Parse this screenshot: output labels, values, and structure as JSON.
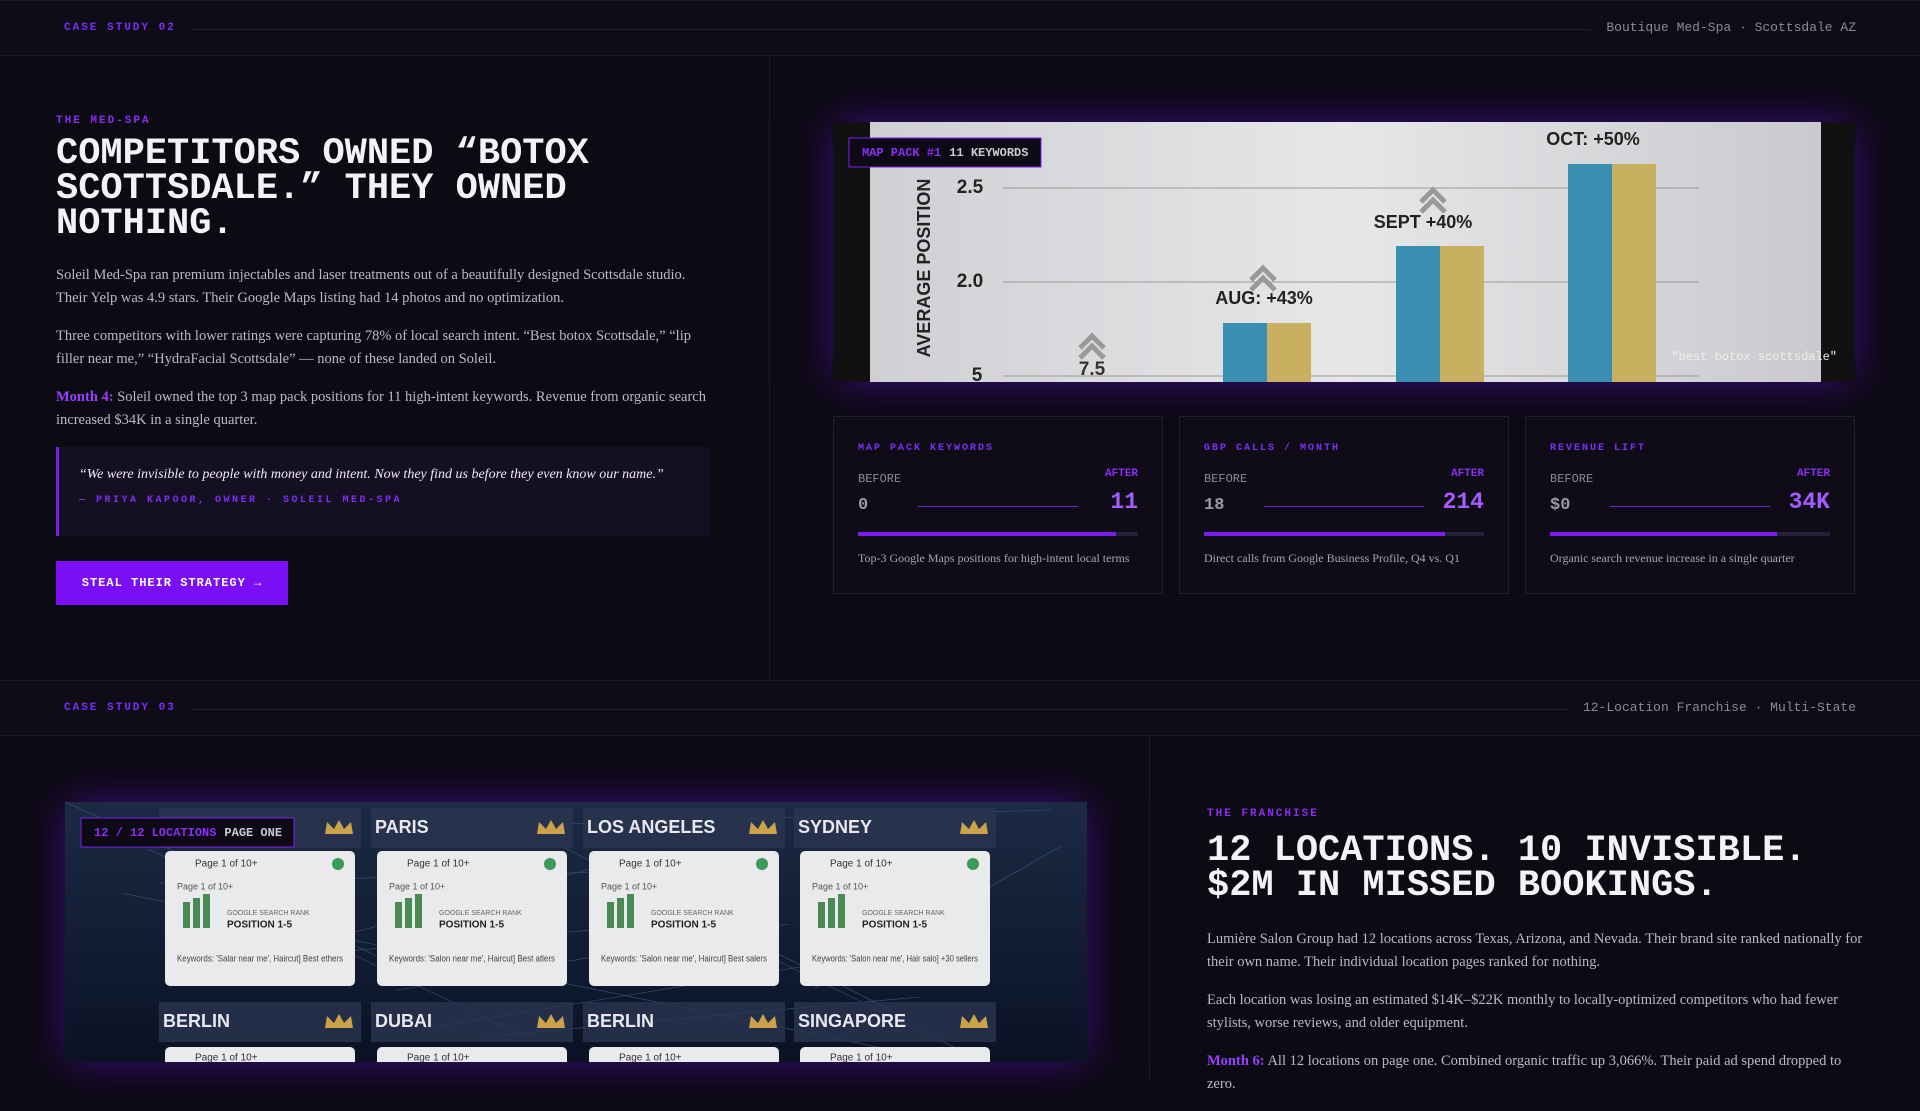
{
  "case_studies": [
    {
      "label": "CASE STUDY 02",
      "subtitle": "Boutique Med-Spa · Scottsdale AZ",
      "eyebrow": "THE MED-SPA",
      "heading": [
        "COMPETITORS OWNED “BOTOX",
        "SCOTTSDALE.” THEY OWNED",
        "NOTHING."
      ],
      "paragraphs": [
        {
          "lead": null,
          "text": "Soleil Med-Spa ran premium injectables and laser treatments out of a beautifully designed Scottsdale studio. Their Yelp was 4.9 stars. Their Google Maps listing had 14 photos and no optimization."
        },
        {
          "lead": null,
          "text": "Three competitors with lower ratings were capturing 78% of local search intent. “Best botox Scottsdale,” “lip filler near me,” “HydraFacial Scottsdale” — none of these landed on Soleil."
        },
        {
          "lead": "Month 4:",
          "text": "Soleil owned the top 3 map pack positions for 11 high-intent keywords. Revenue from organic search increased $34K in a single quarter."
        }
      ],
      "quote": "“We were invisible to people with money and intent. Now they find us before they even know our name.”",
      "attribution": "— PRIYA KAPOOR, OWNER · SOLEIL MED-SPA",
      "button": "STEAL THEIR STRATEGY →",
      "image": {
        "badge": "MAP PACK #1",
        "badge_detail": "11 KEYWORDS",
        "axis_label": "AVERAGE POSITION",
        "ticks": [
          "2.5",
          "2.0",
          "5"
        ],
        "low_label": "7.5",
        "bar_labels": [
          "AUG: +43%",
          "SEPT +40%",
          "OCT: +50%"
        ],
        "caption": "\"best botox scottsdale\""
      },
      "stats": [
        {
          "label": "MAP PACK KEYWORDS",
          "before_label": "BEFORE",
          "before": "0",
          "after_label": "AFTER",
          "after": "11",
          "description": "Top-3 Google Maps positions for high-intent local terms"
        },
        {
          "label": "GBP CALLS / MONTH",
          "before_label": "BEFORE",
          "before": "18",
          "after_label": "AFTER",
          "after": "214",
          "description": "Direct calls from Google Business Profile, Q4 vs. Q1"
        },
        {
          "label": "REVENUE LIFT",
          "before_label": "BEFORE",
          "before": "$0",
          "after_label": "AFTER",
          "after": "34K",
          "description": "Organic search revenue increase in a single quarter"
        }
      ]
    },
    {
      "label": "CASE STUDY 03",
      "subtitle": "12-Location Franchise · Multi-State",
      "eyebrow": "THE FRANCHISE",
      "heading": [
        "12 LOCATIONS. 10 INVISIBLE.",
        "$2M IN MISSED BOOKINGS."
      ],
      "paragraphs": [
        {
          "lead": null,
          "text": "Lumière Salon Group had 12 locations across Texas, Arizona, and Nevada. Their brand site ranked nationally for their own name. Their individual location pages ranked for nothing."
        },
        {
          "lead": null,
          "text": "Each location was losing an estimated $14K–$22K monthly to locally-optimized competitors who had fewer stylists, worse reviews, and older equipment."
        },
        {
          "lead": "Month 6:",
          "text": "All 12 locations on page one. Combined organic traffic up 3,066%. Their paid ad spend dropped to zero."
        }
      ],
      "image": {
        "badge": "12 / 12 LOCATIONS",
        "badge_detail": "PAGE ONE",
        "cards": [
          {
            "city": null,
            "page": "Page 1 of 10+",
            "rank_label": "GOOGLE SEARCH RANK",
            "rank": "POSITION 1-5",
            "keywords": "Keywords: 'Salar near me', Haircut] Best ethers"
          },
          {
            "city": "PARIS",
            "page": "Page 1 of 10+",
            "rank_label": "GOOGLE SEARCH RANK",
            "rank": "POSITION 1-5",
            "keywords": "Keywords: 'Salon near me', Haircut] Best atlers"
          },
          {
            "city": "LOS ANGELES",
            "page": "Page 1 of 10+",
            "rank_label": "GOOGLE SEARCH RANK",
            "rank": "POSITION 1-5",
            "keywords": "Keywords: 'Salon near me', Haircut] Best salers"
          },
          {
            "city": "SYDNEY",
            "page": "Page 1 of 10+",
            "rank_label": "GOOGLE SEARCH RANK",
            "rank": "POSITION 1-5",
            "keywords": "Keywords: 'Salon near me', Hair salo] +30 sellers"
          }
        ],
        "bottom_cards": [
          {
            "city": "BERLIN",
            "page": "Page 1 of 10+"
          },
          {
            "city": "DUBAI",
            "page": "Page 1 of 10+"
          },
          {
            "city": "BERLIN",
            "page": "Page 1 of 10+"
          },
          {
            "city": "SINGAPORE",
            "page": "Page 1 of 10+"
          }
        ]
      }
    }
  ]
}
